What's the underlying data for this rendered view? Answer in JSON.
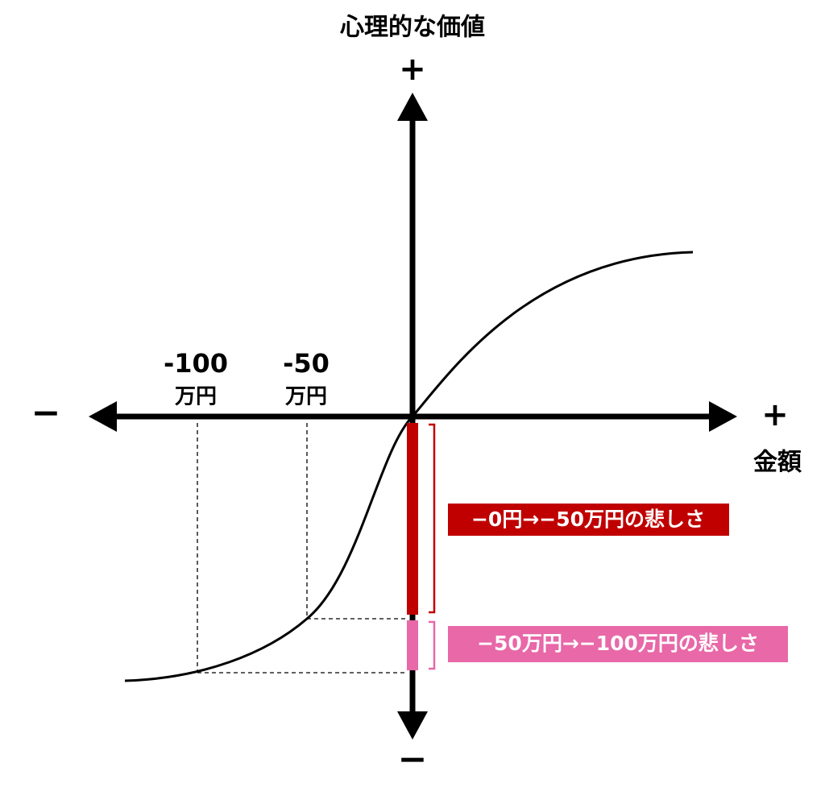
{
  "title": "心理的な価値",
  "y_axis": {
    "plus": "+",
    "minus": "−"
  },
  "x_axis": {
    "plus": "+",
    "minus": "−",
    "label": "金額"
  },
  "ticks": [
    {
      "amount": "-100",
      "unit": "万円"
    },
    {
      "amount": "-50",
      "unit": "万円"
    }
  ],
  "annotations": [
    "−0円→−50万円の悲しさ",
    "−50万円→−100万円の悲しさ"
  ]
}
